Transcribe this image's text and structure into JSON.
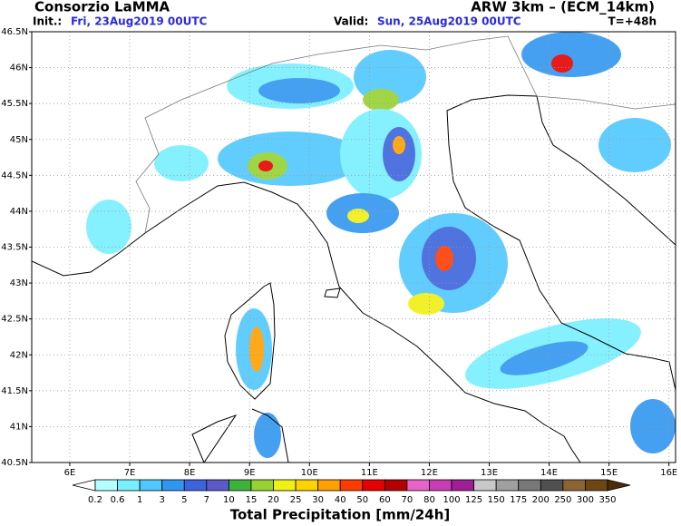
{
  "header": {
    "title": "Consorzio LaMMA",
    "model": "ARW 3km – (ECM_14km)",
    "init_label": "Init.:",
    "init": "Fri, 23Aug2019 00UTC",
    "valid_label": "Valid:",
    "valid": "Sun, 25Aug2019 00UTC",
    "lead": "T=+48h"
  },
  "map": {
    "lonlim": [
      5.365,
      16.11
    ],
    "latlim": [
      40.5,
      46.5
    ],
    "lon_ticks": [
      {
        "value": 6,
        "label": "6E"
      },
      {
        "value": 7,
        "label": "7E"
      },
      {
        "value": 8,
        "label": "8E"
      },
      {
        "value": 9,
        "label": "9E"
      },
      {
        "value": 10,
        "label": "10E"
      },
      {
        "value": 11,
        "label": "11E"
      },
      {
        "value": 12,
        "label": "12E"
      },
      {
        "value": 13,
        "label": "13E"
      },
      {
        "value": 14,
        "label": "14E"
      },
      {
        "value": 15,
        "label": "15E"
      },
      {
        "value": 16,
        "label": "16E"
      }
    ],
    "lat_ticks": [
      {
        "value": 40.5,
        "label": "40.5N"
      },
      {
        "value": 41,
        "label": "41N"
      },
      {
        "value": 41.5,
        "label": "41.5N"
      },
      {
        "value": 42,
        "label": "42N"
      },
      {
        "value": 42.5,
        "label": "42.5N"
      },
      {
        "value": 43,
        "label": "43N"
      },
      {
        "value": 43.5,
        "label": "43.5N"
      },
      {
        "value": 44,
        "label": "44N"
      },
      {
        "value": 44.5,
        "label": "44.5N"
      },
      {
        "value": 45,
        "label": "45N"
      },
      {
        "value": 45.5,
        "label": "45.5N"
      },
      {
        "value": 46,
        "label": "46N"
      },
      {
        "value": 46.5,
        "label": "46.5N"
      }
    ],
    "grid": true
  },
  "colorbar": {
    "title": "Total Precipitation [mm/24h]",
    "levels": [
      0.2,
      0.6,
      1,
      3,
      5,
      7,
      10,
      15,
      20,
      25,
      30,
      40,
      50,
      60,
      70,
      80,
      100,
      125,
      150,
      175,
      200,
      250,
      300,
      350
    ],
    "colors": [
      "#ffffff",
      "#b4ffff",
      "#78f0ff",
      "#50c8ff",
      "#3296f0",
      "#3c64dc",
      "#5a5ac8",
      "#3cb43c",
      "#96d232",
      "#f0f014",
      "#ffd200",
      "#ffa000",
      "#ff3c00",
      "#e60000",
      "#b40000",
      "#e664c8",
      "#c83cb4",
      "#a01e96",
      "#c8c8c8",
      "#a0a0a0",
      "#787878",
      "#505050",
      "#8c6432",
      "#6e4614",
      "#4b2d0a"
    ]
  }
}
